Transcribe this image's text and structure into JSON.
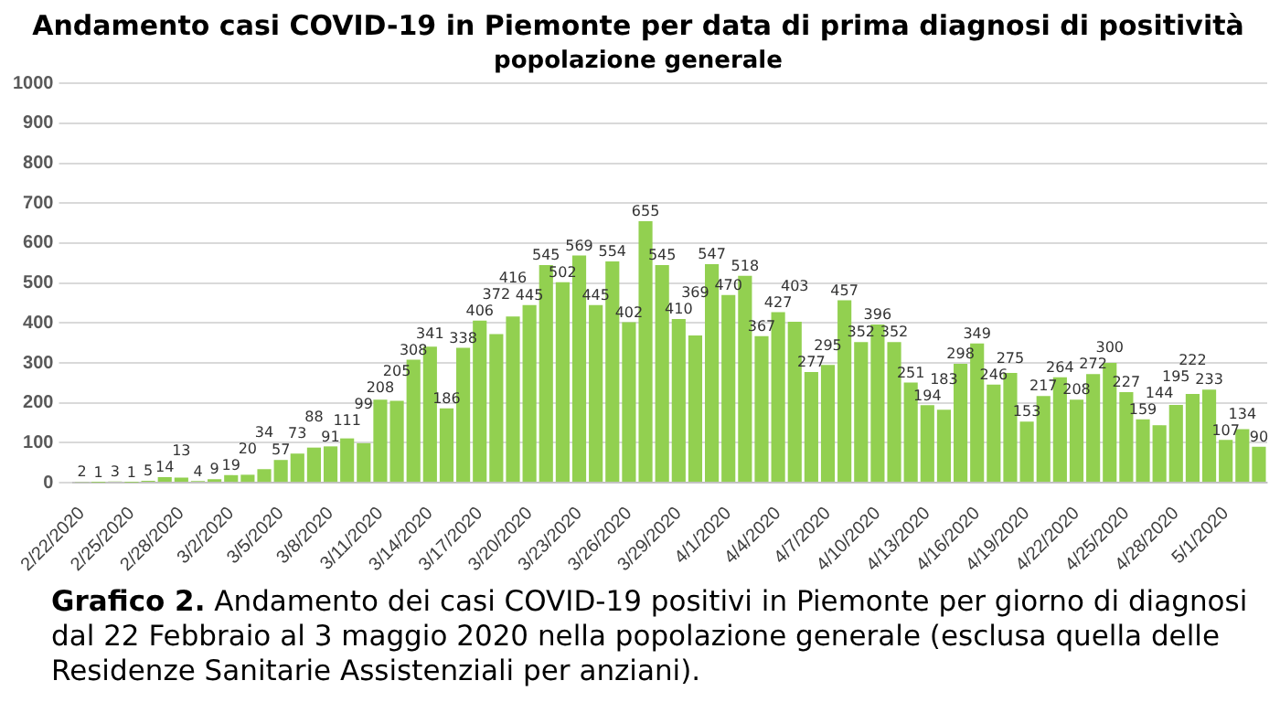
{
  "chart_data": {
    "type": "bar",
    "title": "Andamento casi COVID-19 in Piemonte per data di prima diagnosi di positività",
    "subtitle": "popolazione generale",
    "annotations": [
      "Grafico 2. Andamento dei casi COVID-19 positivi in Piemonte per giorno di diagnosi dal 22 Febbraio al 3 maggio 2020 nella popolazione generale (esclusa quella delle Residenze Sanitarie Assistenziali per anziani)."
    ],
    "categories": [
      "2/22/2020",
      null,
      null,
      "2/25/2020",
      null,
      null,
      "2/28/2020",
      null,
      null,
      "3/2/2020",
      null,
      null,
      "3/5/2020",
      null,
      null,
      "3/8/2020",
      null,
      null,
      "3/11/2020",
      null,
      null,
      "3/14/2020",
      null,
      null,
      "3/17/2020",
      null,
      null,
      "3/20/2020",
      null,
      null,
      "3/23/2020",
      null,
      null,
      "3/26/2020",
      null,
      null,
      "3/29/2020",
      null,
      null,
      "4/1/2020",
      null,
      null,
      "4/4/2020",
      null,
      null,
      "4/7/2020",
      null,
      null,
      "4/10/2020",
      null,
      null,
      "4/13/2020",
      null,
      null,
      "4/16/2020",
      null,
      null,
      "4/19/2020",
      null,
      null,
      "4/22/2020",
      null,
      null,
      "4/25/2020",
      null,
      null,
      "4/28/2020",
      null,
      null,
      "5/1/2020",
      null,
      null
    ],
    "values": [
      2,
      1,
      3,
      1,
      5,
      14,
      13,
      4,
      9,
      19,
      20,
      34,
      57,
      73,
      88,
      91,
      111,
      99,
      208,
      205,
      308,
      341,
      186,
      338,
      406,
      372,
      416,
      445,
      545,
      502,
      569,
      445,
      554,
      402,
      655,
      545,
      410,
      369,
      547,
      470,
      518,
      367,
      427,
      403,
      277,
      295,
      457,
      352,
      396,
      352,
      251,
      194,
      183,
      298,
      349,
      246,
      275,
      153,
      217,
      264,
      208,
      272,
      300,
      227,
      159,
      144,
      195,
      222,
      233,
      107,
      134,
      90
    ],
    "color": "#92d050",
    "ylim": [
      0,
      1000
    ],
    "yticks": [
      0,
      100,
      200,
      300,
      400,
      500,
      600,
      700,
      800,
      900,
      1000
    ],
    "grid": "y",
    "data_labels": true
  }
}
